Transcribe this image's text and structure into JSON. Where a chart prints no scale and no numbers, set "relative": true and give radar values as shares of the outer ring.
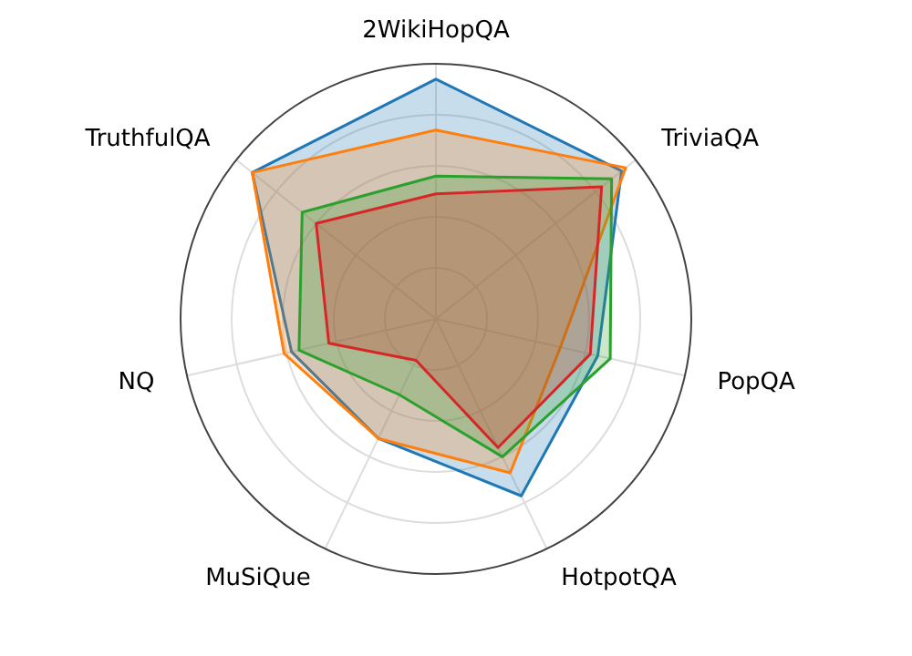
{
  "chart_data": {
    "type": "radar",
    "relative": true,
    "grid": true,
    "categories": [
      "2WikiHopQA",
      "TriviaQA",
      "PopQA",
      "HotpotQA",
      "MuSiQue",
      "NQ",
      "TruthfulQA"
    ],
    "series": [
      {
        "color": "#1f77b4",
        "values": [
          0.94,
          0.93,
          0.65,
          0.77,
          0.52,
          0.58,
          0.92
        ]
      },
      {
        "color": "#ff7f0e",
        "values": [
          0.74,
          0.95,
          0.5,
          0.67,
          0.52,
          0.61,
          0.92
        ]
      },
      {
        "color": "#2ca02c",
        "values": [
          0.56,
          0.88,
          0.7,
          0.6,
          0.33,
          0.55,
          0.67
        ]
      },
      {
        "color": "#d62728",
        "values": [
          0.49,
          0.83,
          0.62,
          0.56,
          0.18,
          0.43,
          0.6
        ]
      }
    ]
  }
}
